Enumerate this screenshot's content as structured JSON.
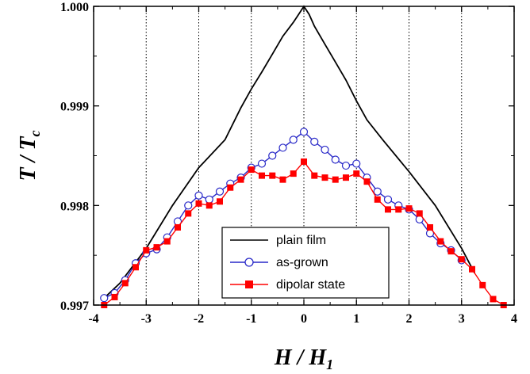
{
  "chart_data": {
    "type": "line",
    "xlabel": {
      "main": "H / H",
      "sub": "1"
    },
    "ylabel": {
      "main": "T / T",
      "sub": "c"
    },
    "xlim": [
      -4,
      4
    ],
    "ylim": [
      0.997,
      1.0
    ],
    "xticks": [
      "-4",
      "-3",
      "-2",
      "-1",
      "0",
      "1",
      "2",
      "3",
      "4"
    ],
    "yticks": [
      "0.997",
      "0.998",
      "0.999",
      "1.000"
    ],
    "xtick_values": [
      -4,
      -3,
      -2,
      -1,
      0,
      1,
      2,
      3,
      4
    ],
    "ytick_values": [
      0.997,
      0.998,
      0.999,
      1.0
    ],
    "grid": "vertical-dotted-at-integers",
    "legend_position": "bottom-center",
    "series": [
      {
        "name": "plain film",
        "color": "#000000",
        "marker": "none",
        "x": [
          -3.8,
          -3.5,
          -3.0,
          -2.5,
          -2.0,
          -1.5,
          -1.2,
          -1.0,
          -0.8,
          -0.6,
          -0.4,
          -0.2,
          -0.1,
          0.0,
          0.1,
          0.2,
          0.4,
          0.6,
          0.8,
          1.0,
          1.2,
          1.5,
          2.0,
          2.5,
          3.0,
          3.25
        ],
        "y": [
          0.99707,
          0.99722,
          0.99757,
          0.998,
          0.99838,
          0.99866,
          0.99898,
          0.99917,
          0.99934,
          0.99952,
          0.9997,
          0.99984,
          0.99992,
          1.0,
          0.99992,
          0.9998,
          0.99962,
          0.99944,
          0.99926,
          0.99905,
          0.99886,
          0.99866,
          0.99834,
          0.998,
          0.99757,
          0.99732
        ]
      },
      {
        "name": "as-grown",
        "color": "#2929c8",
        "marker": "circle",
        "x": [
          -3.8,
          -3.6,
          -3.4,
          -3.2,
          -3.0,
          -2.8,
          -2.6,
          -2.4,
          -2.2,
          -2.0,
          -1.8,
          -1.6,
          -1.4,
          -1.2,
          -1.0,
          -0.8,
          -0.6,
          -0.4,
          -0.2,
          0.0,
          0.2,
          0.4,
          0.6,
          0.8,
          1.0,
          1.2,
          1.4,
          1.6,
          1.8,
          2.0,
          2.2,
          2.4,
          2.6,
          2.8,
          3.0
        ],
        "y": [
          0.99707,
          0.99712,
          0.99725,
          0.99742,
          0.99752,
          0.99756,
          0.99768,
          0.99784,
          0.998,
          0.9981,
          0.99806,
          0.99814,
          0.99822,
          0.99828,
          0.99838,
          0.99842,
          0.9985,
          0.99858,
          0.99866,
          0.99874,
          0.99864,
          0.99856,
          0.99846,
          0.9984,
          0.99842,
          0.99828,
          0.99814,
          0.99806,
          0.998,
          0.99796,
          0.99786,
          0.99772,
          0.99762,
          0.99755,
          0.99745
        ]
      },
      {
        "name": "dipolar state",
        "color": "#ff0000",
        "marker": "square",
        "x": [
          -3.8,
          -3.6,
          -3.4,
          -3.2,
          -3.0,
          -2.8,
          -2.6,
          -2.4,
          -2.2,
          -2.0,
          -1.8,
          -1.6,
          -1.4,
          -1.2,
          -1.0,
          -0.8,
          -0.6,
          -0.4,
          -0.2,
          0.0,
          0.2,
          0.4,
          0.6,
          0.8,
          1.0,
          1.2,
          1.4,
          1.6,
          1.8,
          2.0,
          2.2,
          2.4,
          2.6,
          2.8,
          3.0,
          3.2,
          3.4,
          3.6,
          3.8
        ],
        "y": [
          0.997,
          0.99708,
          0.99722,
          0.99738,
          0.99755,
          0.99758,
          0.99764,
          0.99778,
          0.99792,
          0.99802,
          0.998,
          0.99804,
          0.99818,
          0.99826,
          0.99836,
          0.9983,
          0.9983,
          0.99826,
          0.99832,
          0.99844,
          0.9983,
          0.99828,
          0.99826,
          0.99828,
          0.99832,
          0.99824,
          0.99806,
          0.99796,
          0.99796,
          0.99797,
          0.99792,
          0.99778,
          0.99764,
          0.99754,
          0.99746,
          0.99736,
          0.9972,
          0.99706,
          0.997
        ]
      }
    ]
  }
}
